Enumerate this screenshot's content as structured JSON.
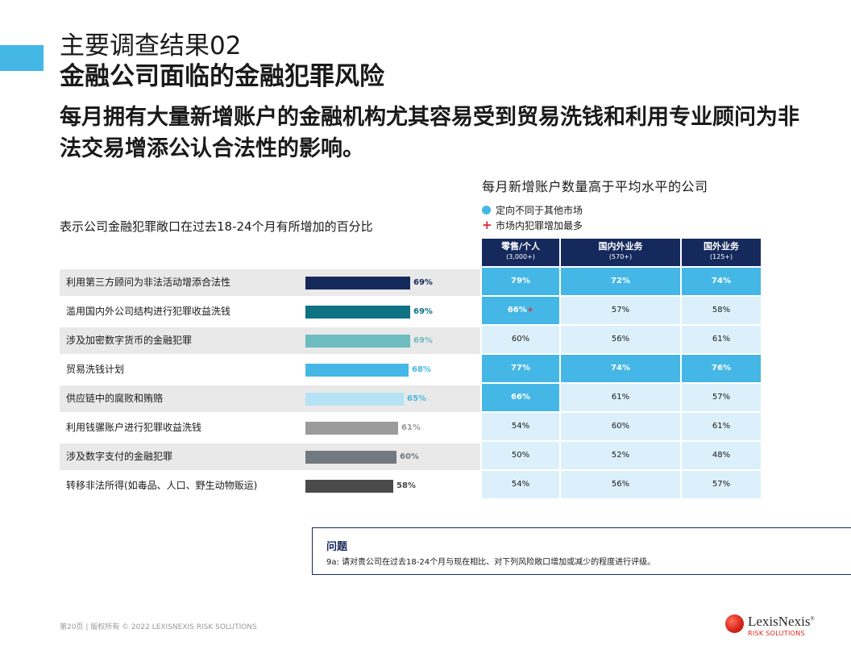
{
  "header": {
    "title_line1": "主要调查结果02",
    "title_line2": "金融公司面临的金融犯罪风险",
    "headline": "每月拥有大量新增账户的金融机构尤其容易受到贸易洗钱和利用专业顾问为非法交易增添公认合法性的影响。"
  },
  "colors": {
    "accent": "#45b7e6",
    "navy": "#16295c",
    "highlight_cell": "#45b7e6",
    "light_cell": "#dcf0fb",
    "plus_red": "#e3262f"
  },
  "chart_data": [
    {
      "type": "bar",
      "orientation": "horizontal",
      "title": "表示公司金融犯罪敞口在过去18-24个月有所增加的百分比",
      "categories": [
        "利用第三方顾问为非法活动增添合法性",
        "滥用国内外公司结构进行犯罪收益洗钱",
        "涉及加密数字货币的金融犯罪",
        "贸易洗钱计划",
        "供应链中的腐败和贿赂",
        "利用钱骡账户进行犯罪收益洗钱",
        "涉及数字支付的金融犯罪",
        "转移非法所得(如毒品、人口、野生动物贩运)"
      ],
      "values": [
        69,
        69,
        69,
        68,
        65,
        61,
        60,
        58
      ],
      "value_labels": [
        "69%",
        "69%",
        "69%",
        "68%",
        "65%",
        "61%",
        "60%",
        "58%"
      ],
      "bar_colors": [
        "#16295c",
        "#0e7283",
        "#6dbcc0",
        "#45b7e6",
        "#b6e2f5",
        "#9b9b9b",
        "#737980",
        "#4a4a4a"
      ],
      "label_colors": [
        "#16295c",
        "#0e7283",
        "#6dbcc0",
        "#45b7e6",
        "#45b7e6",
        "#9b9b9b",
        "#737980",
        "#4a4a4a"
      ],
      "xlim": [
        0,
        100
      ]
    },
    {
      "type": "table",
      "title": "每月新增账户数量高于平均水平的公司",
      "legend": [
        {
          "marker": "dot",
          "label": "定向不同于其他市场"
        },
        {
          "marker": "plus",
          "label": "市场内犯罪增加最多"
        }
      ],
      "columns": [
        {
          "name": "零售/个人",
          "sub": "(3,000+)"
        },
        {
          "name": "国内外业务",
          "sub": "(570+)"
        },
        {
          "name": "国外业务",
          "sub": "(125+)"
        }
      ],
      "rows": [
        {
          "values": [
            "79%",
            "72%",
            "74%"
          ],
          "highlight": [
            true,
            true,
            true
          ],
          "plus": [
            false,
            false,
            false
          ]
        },
        {
          "values": [
            "66%",
            "57%",
            "58%"
          ],
          "highlight": [
            true,
            false,
            false
          ],
          "plus": [
            true,
            false,
            false
          ]
        },
        {
          "values": [
            "60%",
            "56%",
            "61%"
          ],
          "highlight": [
            false,
            false,
            false
          ],
          "plus": [
            false,
            false,
            false
          ]
        },
        {
          "values": [
            "77%",
            "74%",
            "76%"
          ],
          "highlight": [
            true,
            true,
            true
          ],
          "plus": [
            false,
            false,
            false
          ]
        },
        {
          "values": [
            "66%",
            "61%",
            "57%"
          ],
          "highlight": [
            true,
            false,
            false
          ],
          "plus": [
            false,
            false,
            false
          ]
        },
        {
          "values": [
            "54%",
            "60%",
            "61%"
          ],
          "highlight": [
            false,
            false,
            false
          ],
          "plus": [
            false,
            false,
            false
          ]
        },
        {
          "values": [
            "50%",
            "52%",
            "48%"
          ],
          "highlight": [
            false,
            false,
            false
          ],
          "plus": [
            false,
            false,
            false
          ]
        },
        {
          "values": [
            "54%",
            "56%",
            "57%"
          ],
          "highlight": [
            false,
            false,
            false
          ],
          "plus": [
            false,
            false,
            false
          ]
        }
      ],
      "plus_symbol": "+"
    }
  ],
  "question": {
    "title": "问题",
    "text": "9a: 请对贵公司在过去18-24个月与现在相比、对下列风险敞口增加或减少的程度进行评级。"
  },
  "footer": {
    "text": "第20页 |   版权所有 © 2022 LEXISNEXIS RISK SOLUTIONS"
  },
  "logo": {
    "name": "LexisNexis",
    "registered": "®",
    "sub": "RISK SOLUTIONS"
  }
}
